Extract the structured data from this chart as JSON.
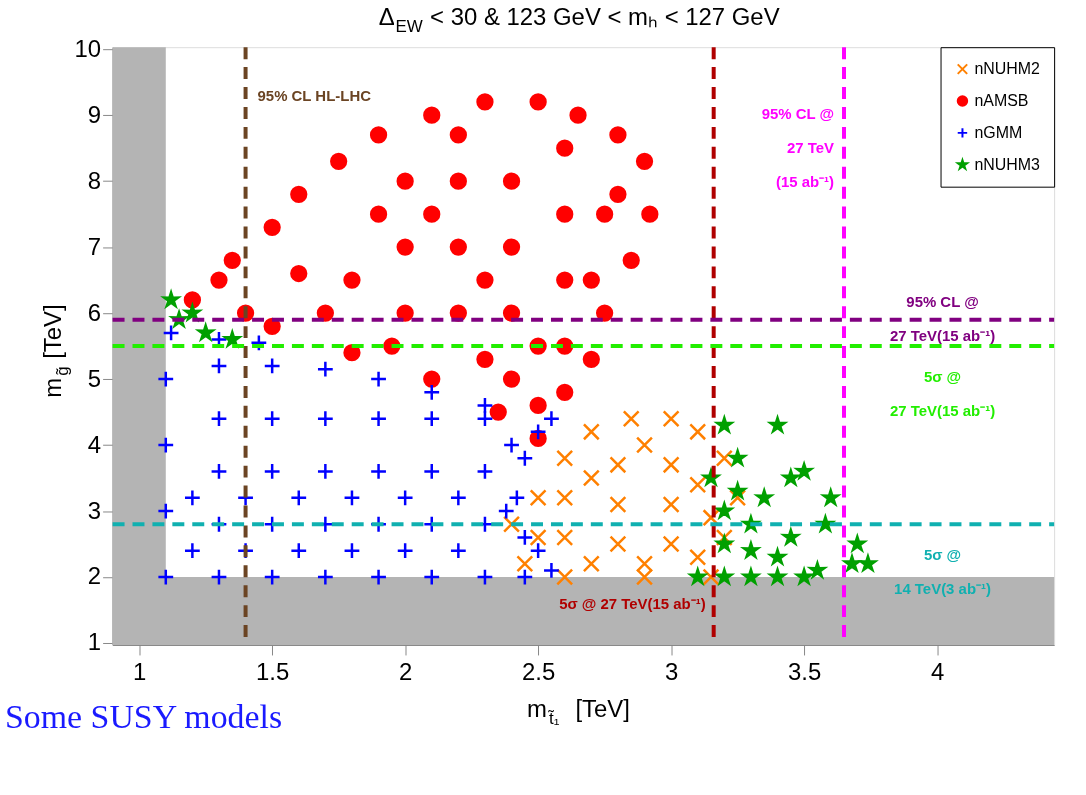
{
  "chart_data": {
    "type": "scatter",
    "title": "Δ$_{EW}$ < 30 & 123 GeV < mₕ < 127 GeV",
    "xlabel": "m$_{t̃₁}$ [TeV]",
    "ylabel": "m$_{g̃}$ [TeV]",
    "xlim": [
      0.9,
      4.44
    ],
    "ylim": [
      0.97,
      10.03
    ],
    "xticks": [
      1,
      1.5,
      2,
      2.5,
      3,
      3.5,
      4
    ],
    "yticks": [
      1,
      2,
      3,
      4,
      5,
      6,
      7,
      8,
      9,
      10
    ],
    "grid": false,
    "legend": "top right",
    "series": [
      {
        "name": "nNUHM2",
        "color": "#ff8000",
        "marker": "cross",
        "x": [
          2.45,
          2.4,
          2.5,
          2.6,
          2.7,
          2.85,
          3.0,
          3.1,
          3.2,
          3.25,
          3.2,
          3.15,
          2.6,
          2.9,
          2.6,
          2.6,
          2.8,
          2.8,
          2.8,
          3.0,
          3.0,
          3.0,
          3.1,
          2.5,
          2.7,
          2.9,
          3.1,
          2.7,
          2.9,
          3.15
        ],
        "values": [
          2.2,
          2.8,
          3.2,
          3.8,
          4.2,
          4.4,
          4.4,
          4.2,
          3.8,
          3.2,
          2.6,
          2.0,
          2.0,
          2.0,
          2.6,
          3.2,
          2.5,
          3.1,
          3.7,
          2.5,
          3.1,
          3.7,
          2.3,
          2.6,
          2.2,
          2.2,
          3.4,
          3.5,
          4.0,
          2.9
        ]
      },
      {
        "name": "nAMSB",
        "color": "#ff0000",
        "marker": "circle",
        "x": [
          1.2,
          1.3,
          1.35,
          1.5,
          1.6,
          1.75,
          1.9,
          2.1,
          2.3,
          2.5,
          2.65,
          2.8,
          2.9,
          2.92,
          2.85,
          2.75,
          2.7,
          2.6,
          2.5,
          2.35,
          2.1,
          1.8,
          1.5,
          1.4,
          1.8,
          2.0,
          2.0,
          2.0,
          2.2,
          2.2,
          2.2,
          2.2,
          2.4,
          2.4,
          2.4,
          2.4,
          2.6,
          2.6,
          2.6,
          2.6,
          2.75,
          1.7,
          1.6,
          1.9,
          2.8,
          1.95,
          2.3,
          2.5,
          2.7,
          2.1,
          2.3,
          2.5
        ],
        "values": [
          6.2,
          6.5,
          6.8,
          7.3,
          7.8,
          8.3,
          8.7,
          9.0,
          9.2,
          9.2,
          9.0,
          8.7,
          8.3,
          7.5,
          6.8,
          6.0,
          5.3,
          4.8,
          4.1,
          4.5,
          5.0,
          5.4,
          5.8,
          6.0,
          6.5,
          6.0,
          7.0,
          8.0,
          6.0,
          7.0,
          8.0,
          8.7,
          5.0,
          6.0,
          7.0,
          8.0,
          5.5,
          6.5,
          7.5,
          8.5,
          7.5,
          6.0,
          6.6,
          7.5,
          7.8,
          5.5,
          5.3,
          4.6,
          6.5,
          7.5,
          6.5,
          5.5
        ]
      },
      {
        "name": "nGMM",
        "color": "#0000ff",
        "marker": "plus",
        "x": [
          1.1,
          1.1,
          1.1,
          1.1,
          1.12,
          1.3,
          1.3,
          1.3,
          1.3,
          1.3,
          1.3,
          1.5,
          1.5,
          1.5,
          1.5,
          1.5,
          1.45,
          1.7,
          1.7,
          1.7,
          1.7,
          1.7,
          1.9,
          1.9,
          1.9,
          1.9,
          1.9,
          2.1,
          2.1,
          2.1,
          2.1,
          2.1,
          2.3,
          2.3,
          2.3,
          2.3,
          2.3,
          2.45,
          2.45,
          2.42,
          2.45,
          2.5,
          2.55,
          2.55,
          2.5,
          2.38,
          1.2,
          1.4,
          1.6,
          1.8,
          2.0,
          2.2,
          1.2,
          1.4,
          1.6,
          1.8,
          2.0,
          2.2,
          2.4
        ],
        "values": [
          2.0,
          3.0,
          4.0,
          5.0,
          5.7,
          2.0,
          2.8,
          3.6,
          4.4,
          5.2,
          5.6,
          2.0,
          2.8,
          3.6,
          4.4,
          5.2,
          5.55,
          2.0,
          2.8,
          3.6,
          4.4,
          5.15,
          2.0,
          2.8,
          3.6,
          4.4,
          5.0,
          2.0,
          2.8,
          3.6,
          4.4,
          4.8,
          2.0,
          2.8,
          3.6,
          4.4,
          4.6,
          2.0,
          2.6,
          3.2,
          3.8,
          4.2,
          4.4,
          2.1,
          2.4,
          3.0,
          2.4,
          2.4,
          2.4,
          2.4,
          2.4,
          2.4,
          3.2,
          3.2,
          3.2,
          3.2,
          3.2,
          3.2,
          4.0
        ]
      },
      {
        "name": "nNUHM3",
        "color": "#00a000",
        "marker": "star",
        "x": [
          1.12,
          1.15,
          1.25,
          1.35,
          1.2,
          3.1,
          3.2,
          3.3,
          3.4,
          3.5,
          3.55,
          3.2,
          3.3,
          3.4,
          3.2,
          3.3,
          3.25,
          3.35,
          3.45,
          3.15,
          3.25,
          3.2,
          3.4,
          3.5,
          3.6,
          3.58,
          3.7,
          3.74,
          3.68,
          3.45
        ],
        "values": [
          6.2,
          5.9,
          5.7,
          5.6,
          6.0,
          2.0,
          2.0,
          2.0,
          2.0,
          2.0,
          2.1,
          2.5,
          2.4,
          2.3,
          3.0,
          2.8,
          3.3,
          3.2,
          2.6,
          3.5,
          3.8,
          4.3,
          4.3,
          3.6,
          3.2,
          2.8,
          2.5,
          2.2,
          2.2,
          3.5
        ]
      }
    ],
    "ref_lines": [
      {
        "axis": "x",
        "value": 1.4,
        "label": "95% CL HL-LHC",
        "color": "#6b4423",
        "line_style": "dashed"
      },
      {
        "axis": "x",
        "value": 3.16,
        "label": "5σ @ 27 TeV(15 ab⁻¹)",
        "color": "#b00000",
        "line_style": "dashed"
      },
      {
        "axis": "x",
        "value": 3.65,
        "label": "95% CL @\n27 TeV\n(15 ab⁻¹)",
        "color": "#ff00ff",
        "line_style": "dashed"
      },
      {
        "axis": "y",
        "value": 5.9,
        "label": "95% CL @\n27 TeV(15 ab⁻¹)",
        "color": "#800080",
        "line_style": "dashed"
      },
      {
        "axis": "y",
        "value": 5.5,
        "label": "5σ @\n27 TeV(15 ab⁻¹)",
        "color": "#22ee00",
        "line_style": "dashed"
      },
      {
        "axis": "y",
        "value": 2.8,
        "label": "5σ @\n14 TeV(3 ab⁻¹)",
        "color": "#10b0b0",
        "line_style": "dashed"
      }
    ],
    "bands": [
      {
        "axis": "x",
        "from": 0.9,
        "to": 1.1,
        "color": "#b4b4b4"
      },
      {
        "axis": "y",
        "from": 0.97,
        "to": 2.0,
        "color": "#b4b4b4"
      }
    ],
    "annotations": [
      "Some SUSY models"
    ]
  }
}
